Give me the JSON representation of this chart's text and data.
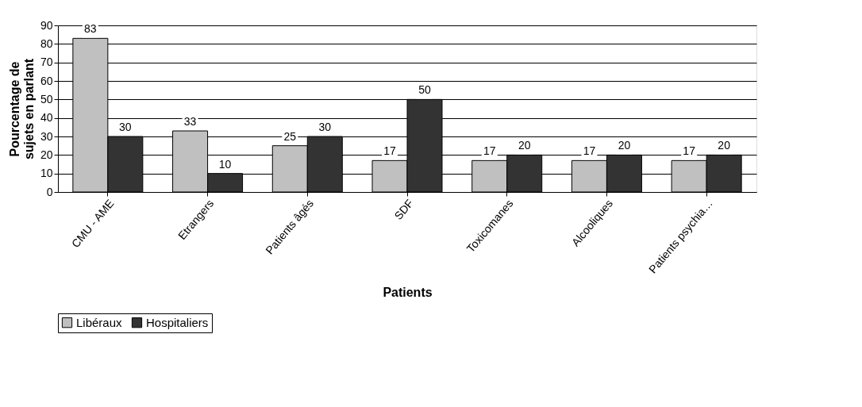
{
  "chart_data": {
    "type": "bar",
    "xlabel": "Patients",
    "ylabel": "Pourcentage de sujets en parlant",
    "categories": [
      "CMU - AME",
      "Etrangers",
      "Patients âgés",
      "SDF",
      "Toxicomanes",
      "Alcooliques",
      "Patients psychia…"
    ],
    "series": [
      {
        "name": "Libéraux",
        "color": "#c0c0c0",
        "values": [
          83,
          33,
          25,
          17,
          17,
          17,
          17
        ]
      },
      {
        "name": "Hospitaliers",
        "color": "#333333",
        "values": [
          30,
          10,
          30,
          50,
          20,
          20,
          20
        ]
      }
    ],
    "ylim": [
      0,
      90
    ],
    "yticks": [
      0,
      10,
      20,
      30,
      40,
      50,
      60,
      70,
      80,
      90
    ],
    "grid": "y",
    "legend": "bottom",
    "data_labels": true
  }
}
